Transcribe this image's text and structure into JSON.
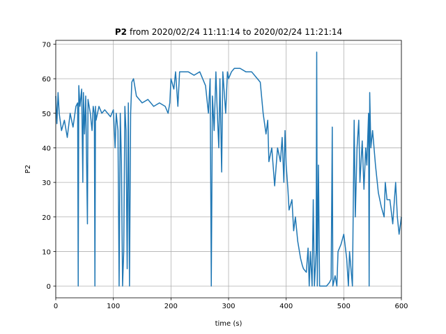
{
  "chart_data": {
    "type": "line",
    "title_bold": "P2",
    "title": "from 2020/02/24 11:11:14 to 2020/02/24 11:21:14",
    "xlabel": "time (s)",
    "ylabel": "P2",
    "xlim": [
      0,
      600
    ],
    "ylim": [
      -3.4,
      71.1
    ],
    "xticks": [
      0,
      100,
      200,
      300,
      400,
      500,
      600
    ],
    "yticks": [
      0,
      10,
      20,
      30,
      40,
      50,
      60,
      70
    ],
    "grid": true,
    "x": [
      0,
      2,
      4,
      6,
      10,
      15,
      20,
      25,
      30,
      35,
      38,
      39,
      40,
      42,
      45,
      47,
      48,
      50,
      52,
      55,
      56,
      58,
      60,
      63,
      65,
      67,
      68,
      69,
      70,
      75,
      80,
      85,
      90,
      95,
      100,
      103,
      105,
      108,
      110,
      112,
      114,
      116,
      118,
      120,
      122,
      124,
      126,
      128,
      130,
      132,
      135,
      140,
      150,
      160,
      170,
      180,
      190,
      195,
      198,
      200,
      205,
      208,
      212,
      215,
      220,
      230,
      240,
      250,
      260,
      265,
      268,
      270,
      272,
      275,
      278,
      280,
      283,
      285,
      288,
      290,
      295,
      298,
      300,
      305,
      310,
      320,
      330,
      340,
      350,
      355,
      360,
      365,
      368,
      370,
      375,
      380,
      385,
      390,
      393,
      396,
      398,
      400,
      403,
      405,
      410,
      413,
      416,
      420,
      425,
      428,
      430,
      435,
      438,
      440,
      442,
      445,
      447,
      449,
      452,
      453,
      454,
      456,
      458,
      465,
      470,
      475,
      478,
      480,
      481,
      485,
      488,
      490,
      495,
      500,
      505,
      508,
      510,
      515,
      518,
      520,
      523,
      526,
      528,
      532,
      535,
      538,
      540,
      543,
      544,
      545,
      547,
      550,
      555,
      560,
      565,
      570,
      572,
      575,
      580,
      585,
      590,
      593,
      596,
      600
    ],
    "series": [
      {
        "name": "P2",
        "color": "#1f77b4",
        "values": [
          55,
          47,
          56,
          50,
          45,
          48,
          43,
          50,
          46,
          52,
          53,
          0,
          58,
          52,
          57,
          30,
          56,
          44,
          55,
          18,
          54,
          52,
          50,
          45,
          52,
          50,
          0,
          52,
          48,
          52,
          50,
          51,
          50,
          49,
          51,
          40,
          50,
          45,
          0,
          50,
          36,
          0,
          10,
          52,
          45,
          5,
          53,
          0,
          50,
          59,
          60,
          55,
          53,
          54,
          52,
          53,
          52,
          50,
          53,
          60,
          57,
          62,
          52,
          62,
          62,
          62,
          61,
          62,
          58,
          50,
          60,
          0,
          55,
          45,
          62,
          52,
          40,
          60,
          33,
          62,
          50,
          62,
          60,
          62,
          63,
          63,
          62,
          62,
          60,
          59,
          50,
          44,
          48,
          36,
          40,
          29,
          40,
          36,
          43,
          30,
          45,
          35,
          28,
          22,
          25,
          16,
          20,
          13,
          8,
          6,
          5,
          4,
          11,
          0,
          10,
          0,
          25,
          0,
          10,
          67.7,
          0,
          35,
          0,
          0,
          0,
          1,
          2,
          46,
          0,
          3,
          0,
          10,
          12,
          15,
          8,
          0,
          10,
          0,
          48,
          20,
          40,
          48,
          30,
          42,
          28,
          40,
          35,
          50,
          0,
          56,
          40,
          45,
          35,
          27,
          23,
          20,
          30,
          25,
          25,
          18,
          30,
          20,
          15,
          20
        ]
      }
    ]
  }
}
